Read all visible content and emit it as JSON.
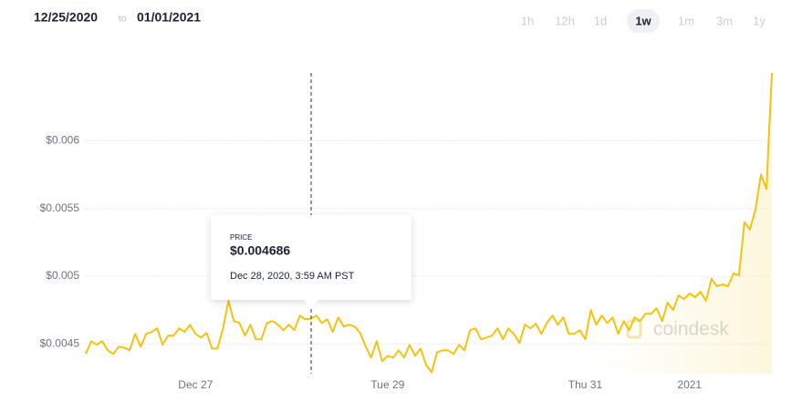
{
  "header": {
    "from": "12/25/2020",
    "to": "to",
    "until": "01/01/2021",
    "ranges": [
      "1h",
      "12h",
      "1d",
      "1w",
      "1m",
      "3m",
      "1y"
    ],
    "selected": "1w"
  },
  "tooltip": {
    "label": "PRICE",
    "value": "$0.004686",
    "time": "Dec 28, 2020, 3:59 AM PST"
  },
  "watermark": "coindesk",
  "chart_data": {
    "type": "line",
    "color": "#f2c40f",
    "grid": true,
    "ylim": [
      0.00428,
      0.0065
    ],
    "yticks": [
      {
        "value": 0.0045,
        "label": "$0.0045"
      },
      {
        "value": 0.005,
        "label": "$0.005"
      },
      {
        "value": 0.0055,
        "label": "$0.0055"
      },
      {
        "value": 0.006,
        "label": "$0.006"
      }
    ],
    "categories": [
      null,
      null,
      null,
      null,
      null,
      null,
      null,
      null,
      null,
      null,
      null,
      null,
      null,
      null,
      null,
      null,
      null,
      null,
      null,
      null,
      "Dec 27",
      null,
      null,
      null,
      null,
      null,
      null,
      null,
      null,
      null,
      null,
      null,
      null,
      null,
      null,
      null,
      null,
      null,
      null,
      null,
      null,
      null,
      null,
      null,
      null,
      null,
      null,
      null,
      null,
      null,
      null,
      null,
      null,
      null,
      null,
      "Tue 29",
      null,
      null,
      null,
      null,
      null,
      null,
      null,
      null,
      null,
      null,
      null,
      null,
      null,
      null,
      null,
      null,
      null,
      null,
      null,
      null,
      null,
      null,
      null,
      null,
      null,
      null,
      null,
      null,
      null,
      null,
      null,
      null,
      null,
      null,
      null,
      "Thu 31",
      null,
      null,
      null,
      null,
      null,
      null,
      null,
      null,
      null,
      null,
      null,
      null,
      null,
      null,
      null,
      null,
      null,
      null,
      "2021",
      null,
      null,
      null,
      null,
      null,
      null,
      null,
      null,
      null,
      null,
      null,
      null,
      null,
      null,
      null
    ],
    "values": [
      0.004426,
      0.00452,
      0.004493,
      0.00452,
      0.004453,
      0.004426,
      0.00448,
      0.004473,
      0.004453,
      0.004574,
      0.00448,
      0.004574,
      0.004588,
      0.004615,
      0.004493,
      0.004561,
      0.004561,
      0.004615,
      0.004588,
      0.004642,
      0.004574,
      0.004547,
      0.004581,
      0.004466,
      0.004466,
      0.004615,
      0.004818,
      0.004669,
      0.004655,
      0.004561,
      0.004642,
      0.004534,
      0.004534,
      0.004655,
      0.004669,
      0.004642,
      0.004601,
      0.004642,
      0.004601,
      0.004709,
      0.004682,
      0.004686,
      0.004709,
      0.004655,
      0.004682,
      0.004588,
      0.004696,
      0.004628,
      0.004642,
      0.004628,
      0.004581,
      0.00448,
      0.004399,
      0.00452,
      0.004372,
      0.004412,
      0.004399,
      0.004453,
      0.004399,
      0.004493,
      0.004412,
      0.004466,
      0.004345,
      0.004291,
      0.004439,
      0.004453,
      0.004453,
      0.004426,
      0.004493,
      0.004453,
      0.004601,
      0.004615,
      0.004534,
      0.004547,
      0.004561,
      0.004615,
      0.004534,
      0.004615,
      0.004574,
      0.004507,
      0.004642,
      0.004615,
      0.004649,
      0.004574,
      0.004655,
      0.004709,
      0.004642,
      0.004696,
      0.004574,
      0.004574,
      0.004601,
      0.004534,
      0.00475,
      0.004642,
      0.004709,
      0.004655,
      0.004696,
      0.004574,
      0.004669,
      0.004601,
      0.004696,
      0.004669,
      0.004723,
      0.004723,
      0.004764,
      0.004669,
      0.004804,
      0.00475,
      0.004858,
      0.004831,
      0.004872,
      0.004845,
      0.004885,
      0.004818,
      0.00498,
      0.004926,
      0.004939,
      0.004926,
      0.00502,
      0.005007,
      0.005399,
      0.005345,
      0.005493,
      0.00575,
      0.005642,
      0.0065
    ]
  }
}
